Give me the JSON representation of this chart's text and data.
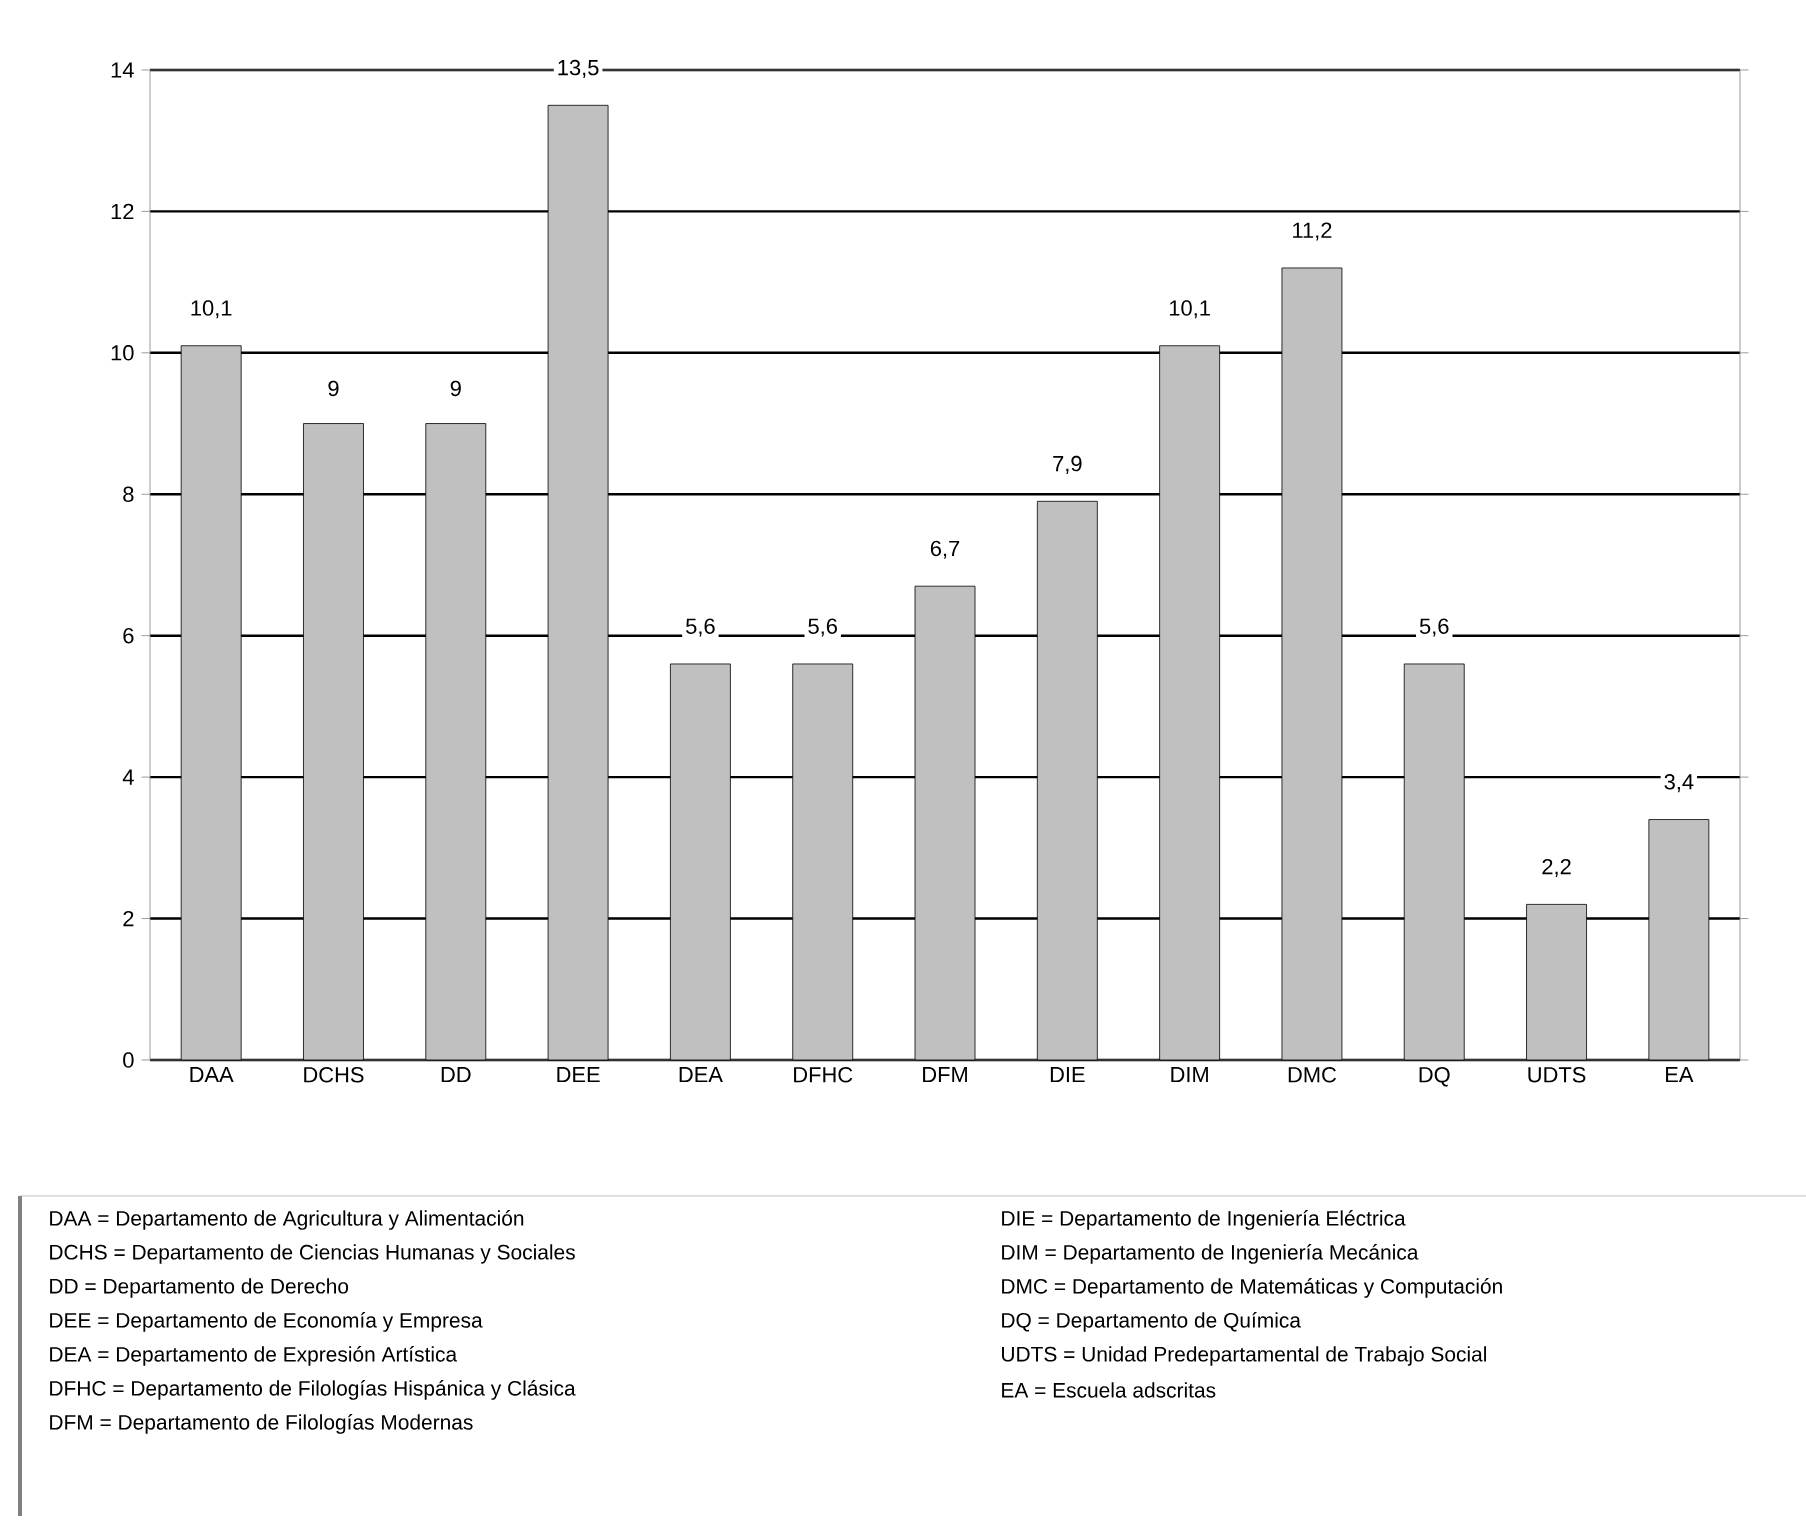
{
  "chart_data": {
    "type": "bar",
    "categories": [
      "DAA",
      "DCHS",
      "DD",
      "DEE",
      "DEA",
      "DFHC",
      "DFM",
      "DIE",
      "DIM",
      "DMC",
      "DQ",
      "UDTS",
      "EA"
    ],
    "values": [
      10.1,
      9,
      9,
      13.5,
      5.6,
      5.6,
      6.7,
      7.9,
      10.1,
      11.2,
      5.6,
      2.2,
      3.4
    ],
    "value_labels": [
      "10,1",
      "9",
      "9",
      "13,5",
      "5,6",
      "5,6",
      "6,7",
      "7,9",
      "10,1",
      "11,2",
      "5,6",
      "2,2",
      "3,4"
    ],
    "color": "#c0c0c0",
    "ylim": [
      0,
      14
    ],
    "yticks": [
      0,
      2,
      4,
      6,
      8,
      10,
      12,
      14
    ],
    "grid": "y",
    "annotations": [
      "DAA = Departamento de Agricultura y Alimentación",
      "DCHS = Departamento de Ciencias Humanas y Sociales",
      "DD = Departamento de Derecho",
      "DEE = Departamento de Economía y Empresa",
      "DEA = Departamento de Expresión Artística",
      "DFHC = Departamento de Filologías Hispánica y Clásica",
      "DFM = Departamento de Filologías Modernas",
      "DIE = Departamento de Ingeniería Eléctrica",
      "DIM = Departamento de Ingeniería Mecánica",
      "DMC = Departamento de Matemáticas y Computación",
      "DQ = Departamento de Química",
      "UDTS = Unidad Predepartamental de Trabajo Social",
      "EA = Escuela adscritas"
    ]
  }
}
